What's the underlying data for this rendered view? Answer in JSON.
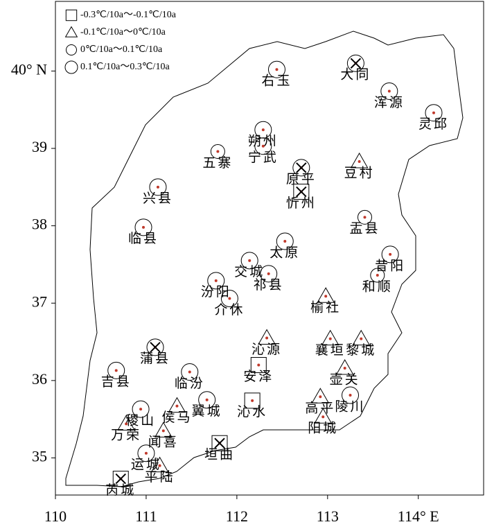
{
  "chart_data": {
    "type": "map",
    "legend": [
      "-0.3℃/10a～-0.1℃/10a",
      "-0.1℃/10a～0℃/10a",
      "0℃/10a～0.1℃/10a",
      "0.1℃/10a～0.3℃/10a"
    ],
    "xlim": [
      110,
      114.72
    ],
    "ylim": [
      34.52,
      40.9
    ],
    "xticks": [
      110,
      111,
      112,
      113,
      {
        "value": 114,
        "label": "114° E"
      }
    ],
    "yticks": [
      35,
      36,
      37,
      38,
      39,
      {
        "value": 40,
        "label": "40° N"
      }
    ],
    "stations": [
      {
        "name": "右玉",
        "lon": 112.44,
        "lat": 40.02,
        "trend_class": 3,
        "significant": false
      },
      {
        "name": "大同",
        "lon": 113.31,
        "lat": 40.1,
        "trend_class": 3,
        "significant": true
      },
      {
        "name": "浑源",
        "lon": 113.68,
        "lat": 39.74,
        "trend_class": 3,
        "significant": false
      },
      {
        "name": "灵邱",
        "lon": 114.17,
        "lat": 39.46,
        "trend_class": 3,
        "significant": false
      },
      {
        "name": "朔州",
        "lon": 112.29,
        "lat": 39.24,
        "trend_class": 3,
        "significant": false
      },
      {
        "name": "宁武",
        "lon": 112.29,
        "lat": 39.03,
        "trend_class": 3,
        "significant": false
      },
      {
        "name": "五寨",
        "lon": 111.79,
        "lat": 38.96,
        "trend_class": 2,
        "significant": false
      },
      {
        "name": "原平",
        "lon": 112.71,
        "lat": 38.75,
        "trend_class": 3,
        "significant": true
      },
      {
        "name": "忻州",
        "lon": 112.71,
        "lat": 38.44,
        "trend_class": 0,
        "significant": true
      },
      {
        "name": "豆村",
        "lon": 113.35,
        "lat": 38.83,
        "trend_class": 1,
        "significant": false
      },
      {
        "name": "兴县",
        "lon": 111.13,
        "lat": 38.5,
        "trend_class": 3,
        "significant": false
      },
      {
        "name": "临县",
        "lon": 110.97,
        "lat": 37.98,
        "trend_class": 3,
        "significant": false
      },
      {
        "name": "盂县",
        "lon": 113.41,
        "lat": 38.11,
        "trend_class": 2,
        "significant": false
      },
      {
        "name": "太原",
        "lon": 112.53,
        "lat": 37.8,
        "trend_class": 3,
        "significant": false
      },
      {
        "name": "昔阳",
        "lon": 113.69,
        "lat": 37.63,
        "trend_class": 3,
        "significant": false
      },
      {
        "name": "交城",
        "lon": 112.14,
        "lat": 37.55,
        "trend_class": 3,
        "significant": false
      },
      {
        "name": "祁县",
        "lon": 112.35,
        "lat": 37.38,
        "trend_class": 3,
        "significant": false
      },
      {
        "name": "和顺",
        "lon": 113.55,
        "lat": 37.36,
        "trend_class": 2,
        "significant": false
      },
      {
        "name": "汾阳",
        "lon": 111.77,
        "lat": 37.29,
        "trend_class": 3,
        "significant": false
      },
      {
        "name": "介休",
        "lon": 111.92,
        "lat": 37.06,
        "trend_class": 3,
        "significant": false
      },
      {
        "name": "榆社",
        "lon": 112.98,
        "lat": 37.09,
        "trend_class": 1,
        "significant": false
      },
      {
        "name": "沁源",
        "lon": 112.33,
        "lat": 36.55,
        "trend_class": 1,
        "significant": false
      },
      {
        "name": "襄垣",
        "lon": 113.03,
        "lat": 36.54,
        "trend_class": 1,
        "significant": false
      },
      {
        "name": "黎城",
        "lon": 113.37,
        "lat": 36.54,
        "trend_class": 1,
        "significant": false
      },
      {
        "name": "蒲县",
        "lon": 111.1,
        "lat": 36.43,
        "trend_class": 3,
        "significant": true
      },
      {
        "name": "吉县",
        "lon": 110.67,
        "lat": 36.13,
        "trend_class": 3,
        "significant": false
      },
      {
        "name": "安泽",
        "lon": 112.24,
        "lat": 36.2,
        "trend_class": 0,
        "significant": false
      },
      {
        "name": "临汾",
        "lon": 111.48,
        "lat": 36.11,
        "trend_class": 3,
        "significant": false
      },
      {
        "name": "壶关",
        "lon": 113.19,
        "lat": 36.16,
        "trend_class": 1,
        "significant": false
      },
      {
        "name": "沁水",
        "lon": 112.17,
        "lat": 35.74,
        "trend_class": 0,
        "significant": false
      },
      {
        "name": "翼城",
        "lon": 111.67,
        "lat": 35.75,
        "trend_class": 3,
        "significant": false
      },
      {
        "name": "侯马",
        "lon": 111.34,
        "lat": 35.67,
        "trend_class": 1,
        "significant": false
      },
      {
        "name": "高平",
        "lon": 112.92,
        "lat": 35.79,
        "trend_class": 1,
        "significant": false
      },
      {
        "name": "陵川",
        "lon": 113.25,
        "lat": 35.81,
        "trend_class": 3,
        "significant": false
      },
      {
        "name": "稷山",
        "lon": 110.94,
        "lat": 35.63,
        "trend_class": 3,
        "significant": false
      },
      {
        "name": "阳城",
        "lon": 112.95,
        "lat": 35.53,
        "trend_class": 1,
        "significant": false
      },
      {
        "name": "万荣",
        "lon": 110.78,
        "lat": 35.44,
        "trend_class": 1,
        "significant": false
      },
      {
        "name": "闻喜",
        "lon": 111.19,
        "lat": 35.35,
        "trend_class": 1,
        "significant": false
      },
      {
        "name": "垣曲",
        "lon": 111.81,
        "lat": 35.19,
        "trend_class": 0,
        "significant": true
      },
      {
        "name": "运城",
        "lon": 111.0,
        "lat": 35.06,
        "trend_class": 3,
        "significant": false
      },
      {
        "name": "平陆",
        "lon": 111.15,
        "lat": 34.9,
        "trend_class": 1,
        "significant": false
      },
      {
        "name": "芮城",
        "lon": 110.72,
        "lat": 34.73,
        "trend_class": 0,
        "significant": true
      }
    ]
  }
}
